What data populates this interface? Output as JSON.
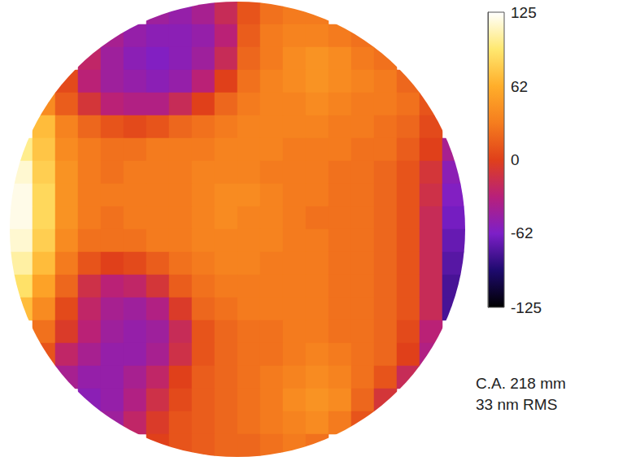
{
  "chart_data": {
    "type": "heatmap",
    "tick_labels": false,
    "cells": [
      [
        null,
        null,
        null,
        null,
        null,
        null,
        -45,
        -50,
        -40,
        -20,
        10,
        25,
        30,
        30,
        null,
        null,
        null,
        null,
        null,
        null
      ],
      [
        null,
        null,
        null,
        null,
        -40,
        -50,
        -55,
        -55,
        -50,
        -30,
        15,
        30,
        35,
        35,
        30,
        25,
        null,
        null,
        null,
        null
      ],
      [
        null,
        null,
        null,
        -25,
        -45,
        -55,
        -60,
        -55,
        -45,
        -20,
        20,
        30,
        40,
        45,
        40,
        30,
        25,
        null,
        null,
        null
      ],
      [
        null,
        null,
        5,
        -30,
        -45,
        -50,
        -55,
        -50,
        -30,
        0,
        25,
        35,
        40,
        45,
        40,
        35,
        30,
        20,
        null,
        null
      ],
      [
        null,
        40,
        15,
        -10,
        -30,
        -35,
        -35,
        -20,
        0,
        20,
        30,
        35,
        35,
        40,
        35,
        30,
        30,
        25,
        10,
        null
      ],
      [
        null,
        70,
        35,
        20,
        10,
        5,
        10,
        20,
        25,
        30,
        35,
        35,
        35,
        35,
        30,
        30,
        25,
        20,
        5,
        null
      ],
      [
        100,
        75,
        40,
        30,
        25,
        25,
        30,
        30,
        30,
        35,
        35,
        35,
        30,
        30,
        30,
        25,
        25,
        15,
        0,
        -40
      ],
      [
        115,
        80,
        45,
        30,
        25,
        30,
        30,
        30,
        35,
        35,
        35,
        30,
        30,
        30,
        25,
        25,
        20,
        10,
        -10,
        -55
      ],
      [
        120,
        85,
        45,
        30,
        30,
        30,
        30,
        30,
        35,
        40,
        40,
        35,
        30,
        30,
        25,
        25,
        20,
        10,
        -15,
        -60
      ],
      [
        120,
        85,
        45,
        30,
        25,
        30,
        30,
        30,
        35,
        40,
        35,
        35,
        30,
        25,
        25,
        25,
        20,
        10,
        -20,
        -65
      ],
      [
        115,
        80,
        40,
        25,
        25,
        25,
        30,
        30,
        35,
        35,
        35,
        35,
        30,
        30,
        25,
        25,
        20,
        10,
        -20,
        -70
      ],
      [
        105,
        70,
        30,
        10,
        0,
        5,
        15,
        25,
        30,
        35,
        35,
        30,
        30,
        30,
        25,
        25,
        20,
        10,
        -20,
        -75
      ],
      [
        90,
        55,
        20,
        -15,
        -30,
        -25,
        -10,
        15,
        25,
        30,
        30,
        30,
        30,
        30,
        25,
        25,
        20,
        10,
        -20,
        -80
      ],
      [
        70,
        40,
        5,
        -25,
        -40,
        -45,
        -35,
        -5,
        20,
        25,
        30,
        30,
        30,
        30,
        25,
        25,
        20,
        10,
        -20,
        -80
      ],
      [
        null,
        25,
        -5,
        -30,
        -45,
        -50,
        -45,
        -20,
        10,
        20,
        25,
        25,
        30,
        30,
        25,
        25,
        20,
        5,
        -30,
        null
      ],
      [
        null,
        10,
        -25,
        -40,
        -50,
        -50,
        -40,
        -15,
        10,
        20,
        25,
        25,
        30,
        35,
        30,
        25,
        20,
        0,
        -35,
        null
      ],
      [
        null,
        null,
        -40,
        -50,
        -50,
        -40,
        -25,
        0,
        15,
        20,
        25,
        30,
        35,
        40,
        35,
        25,
        10,
        -20,
        null,
        null
      ],
      [
        null,
        null,
        null,
        -55,
        -50,
        -35,
        -15,
        5,
        15,
        20,
        25,
        30,
        40,
        45,
        40,
        20,
        -10,
        null,
        null,
        null
      ],
      [
        null,
        null,
        null,
        null,
        -45,
        -25,
        -5,
        10,
        15,
        20,
        25,
        30,
        35,
        40,
        30,
        10,
        null,
        null,
        null,
        null
      ],
      [
        null,
        null,
        null,
        null,
        null,
        null,
        0,
        10,
        15,
        20,
        20,
        25,
        30,
        25,
        null,
        null,
        null,
        null,
        null,
        null
      ]
    ],
    "colorbar": {
      "lim": [
        -125,
        125
      ],
      "ticks": [
        125,
        62,
        0,
        -62,
        -125
      ]
    },
    "annotations": [
      "C.A. 218 mm",
      "33 nm RMS"
    ]
  }
}
